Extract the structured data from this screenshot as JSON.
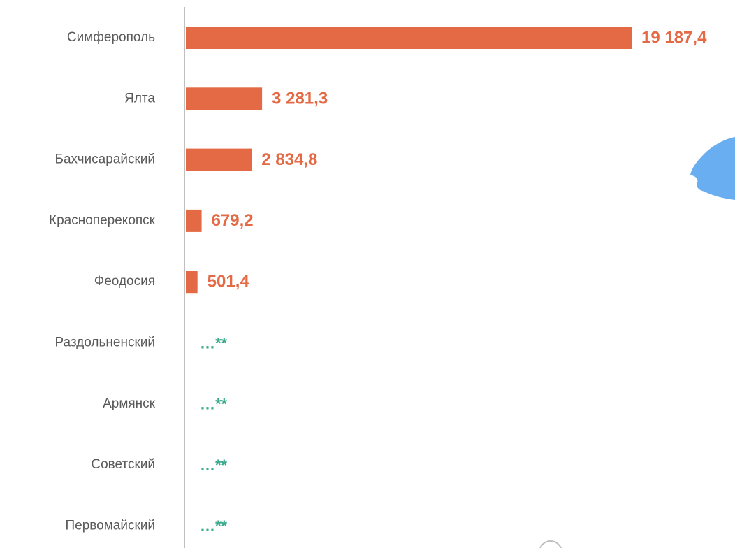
{
  "chart_data": {
    "type": "bar",
    "orientation": "horizontal",
    "categories": [
      "Симферополь",
      "Ялта",
      "Бахчисарайский",
      "Красноперекопск",
      "Феодосия",
      "Раздольненский",
      "Армянск",
      "Советский",
      "Первомайский"
    ],
    "values": [
      19187.4,
      3281.3,
      2834.8,
      679.2,
      501.4,
      null,
      null,
      null,
      null
    ],
    "value_labels": [
      "19 187,4",
      "3 281,3",
      "2 834,8",
      "679,2",
      "501,4",
      "…**",
      "…**",
      "…**",
      "…**"
    ],
    "title": "",
    "xlabel": "",
    "ylabel": "",
    "xlim": [
      0,
      19187.4
    ],
    "grid": false,
    "colors": {
      "bar": "#E46A45",
      "value_text": "#E46A45",
      "missing_text": "#3AAA8C",
      "axis": "#BFBFBF",
      "category_text": "#595959",
      "map_shape": "#6AAEF2"
    }
  },
  "decor": {
    "map_icon": "crimea-map-shape",
    "circle_icon": "circle-outline-icon"
  }
}
